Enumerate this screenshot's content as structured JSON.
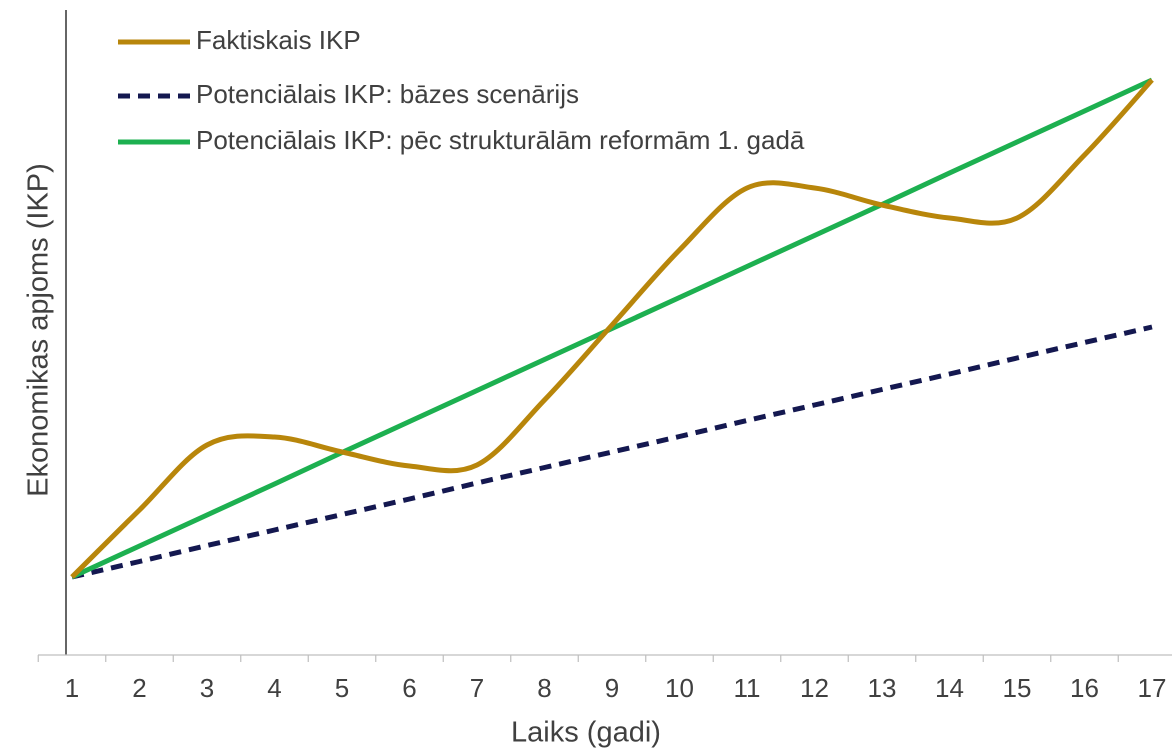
{
  "chart_data": {
    "type": "line",
    "x_label": "Laiks (gadi)",
    "y_label": "Ekonomikas apjoms (IKP)",
    "categories": [
      "1",
      "2",
      "3",
      "4",
      "5",
      "6",
      "7",
      "8",
      "9",
      "10",
      "11",
      "12",
      "13",
      "14",
      "15",
      "16",
      "17"
    ],
    "series": [
      {
        "name": "Faktiskais IKP",
        "color": "#b8860b",
        "dash": false,
        "smooth": true,
        "values": [
          1.56,
          2.9,
          4.2,
          4.36,
          4.06,
          3.78,
          3.8,
          5.1,
          6.6,
          8.1,
          9.34,
          9.34,
          9.0,
          8.74,
          8.74,
          10.0,
          11.5
        ]
      },
      {
        "name": "Potenciālais IKP: bāzes scenārijs",
        "color": "#141850",
        "dash": true,
        "smooth": false,
        "values": [
          1.56,
          1.87,
          2.19,
          2.5,
          2.81,
          3.12,
          3.44,
          3.75,
          4.06,
          4.37,
          4.69,
          5.0,
          5.31,
          5.62,
          5.94,
          6.25,
          6.56
        ]
      },
      {
        "name": "Potenciālais IKP: pēc strukturālām reformām 1. gadā",
        "color": "#1db050",
        "dash": false,
        "smooth": false,
        "values": [
          1.56,
          2.18,
          2.8,
          3.42,
          4.05,
          4.67,
          5.29,
          5.91,
          6.53,
          7.15,
          7.77,
          8.39,
          9.01,
          9.64,
          10.26,
          10.88,
          11.5
        ]
      }
    ],
    "ylim": [
      0,
      13
    ],
    "legend": "top-left"
  }
}
